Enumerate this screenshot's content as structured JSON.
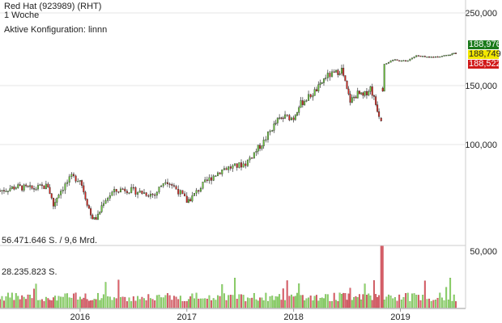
{
  "header": {
    "title": "Red Hat (923989) (RHT)",
    "period": "1 Woche",
    "config": "Aktive Konfiguration: linnn"
  },
  "volume_labels": {
    "max": "56.471.646 S. / 9,6 Mrd.",
    "mid": "28.235.823 S."
  },
  "price_tags": [
    {
      "value": "188,976",
      "bg": "#1a7a1a",
      "fg": "#ffffff"
    },
    {
      "value": "188,749",
      "bg": "#f2e600",
      "fg": "#222222"
    },
    {
      "value": "188,522",
      "bg": "#d11a1a",
      "fg": "#ffffff"
    }
  ],
  "colors": {
    "up": "#6fcf3c",
    "down": "#d9241c",
    "vol_up": "#8fd86a",
    "vol_down": "#e0606a",
    "grid": "#cccccc",
    "axis": "#999999"
  },
  "chart_data": [
    {
      "type": "candlestick",
      "title": "Red Hat (923989) (RHT)",
      "interval": "1 Woche",
      "ylim": [
        60000,
        250000
      ],
      "yticks": [
        "250,000",
        "150,000",
        "100,000"
      ],
      "ytick_values": [
        250000,
        150000,
        100000
      ],
      "xticks": [
        "2016",
        "2017",
        "2018",
        "2019"
      ],
      "xtick_values": [
        2016.0,
        2017.0,
        2018.0,
        2019.0
      ],
      "x_range": [
        2015.25,
        2019.55
      ],
      "close_series": [
        [
          2015.25,
          73000
        ],
        [
          2015.4,
          75000
        ],
        [
          2015.55,
          74000
        ],
        [
          2015.7,
          75500
        ],
        [
          2015.75,
          66000
        ],
        [
          2015.8,
          72000
        ],
        [
          2015.92,
          80000
        ],
        [
          2016.0,
          79000
        ],
        [
          2016.05,
          70000
        ],
        [
          2016.1,
          62000
        ],
        [
          2016.15,
          59000
        ],
        [
          2016.22,
          68000
        ],
        [
          2016.3,
          72000
        ],
        [
          2016.4,
          74000
        ],
        [
          2016.5,
          73000
        ],
        [
          2016.6,
          72000
        ],
        [
          2016.7,
          71000
        ],
        [
          2016.8,
          79000
        ],
        [
          2016.92,
          73000
        ],
        [
          2017.0,
          68000
        ],
        [
          2017.05,
          70000
        ],
        [
          2017.15,
          76000
        ],
        [
          2017.25,
          81000
        ],
        [
          2017.35,
          85000
        ],
        [
          2017.45,
          86000
        ],
        [
          2017.55,
          88000
        ],
        [
          2017.65,
          96000
        ],
        [
          2017.72,
          102000
        ],
        [
          2017.8,
          112000
        ],
        [
          2017.85,
          118000
        ],
        [
          2017.92,
          121000
        ],
        [
          2018.0,
          120000
        ],
        [
          2018.05,
          131000
        ],
        [
          2018.12,
          137000
        ],
        [
          2018.18,
          142000
        ],
        [
          2018.25,
          150000
        ],
        [
          2018.3,
          160000
        ],
        [
          2018.38,
          163000
        ],
        [
          2018.45,
          168000
        ],
        [
          2018.5,
          145000
        ],
        [
          2018.53,
          135000
        ],
        [
          2018.6,
          142000
        ],
        [
          2018.65,
          139000
        ],
        [
          2018.72,
          148000
        ],
        [
          2018.77,
          132000
        ],
        [
          2018.8,
          123000
        ],
        [
          2018.82,
          120000
        ],
        [
          2018.85,
          175000
        ],
        [
          2018.95,
          180000
        ],
        [
          2019.05,
          178000
        ],
        [
          2019.15,
          185000
        ],
        [
          2019.25,
          183000
        ],
        [
          2019.35,
          184000
        ],
        [
          2019.45,
          186000
        ],
        [
          2019.52,
          188749
        ]
      ]
    },
    {
      "type": "bar",
      "title": "",
      "ylim": [
        0,
        56471646
      ],
      "yticks": [
        "50,000"
      ],
      "ytick_values": [
        50000000
      ],
      "markers": [
        56471646,
        28235823
      ],
      "peak": {
        "x": 2018.83,
        "value": 56471646
      }
    }
  ]
}
